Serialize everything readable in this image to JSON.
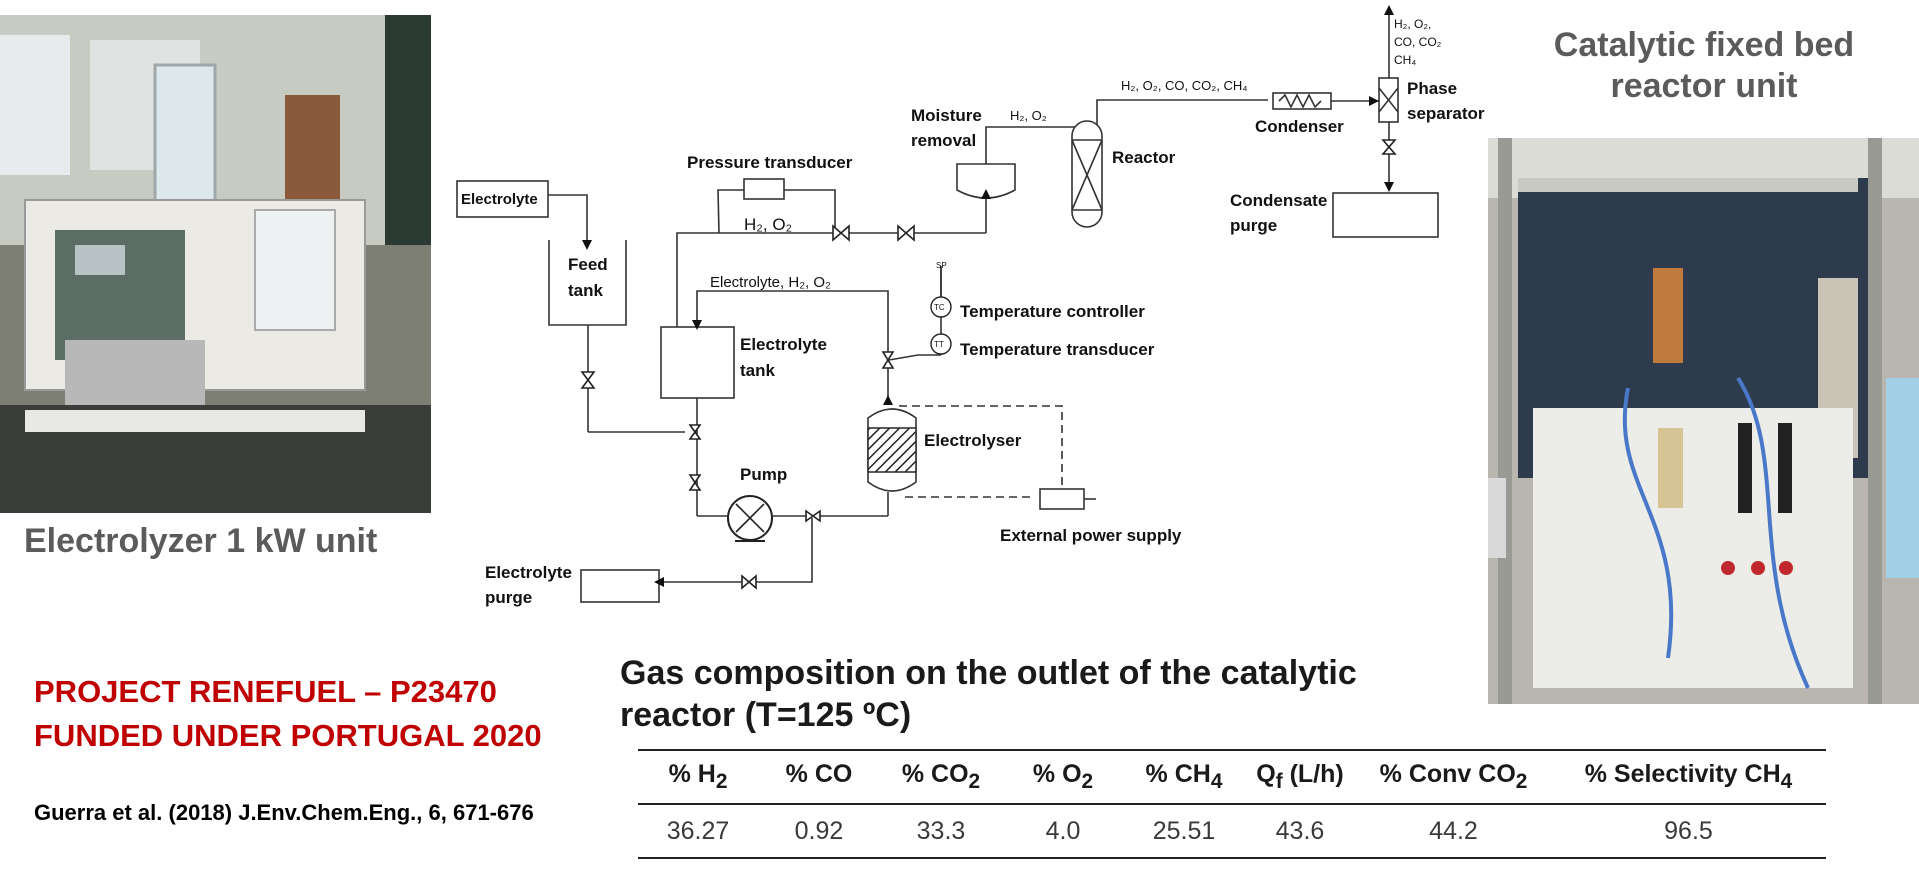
{
  "left_photo": {
    "caption": "Electrolyzer 1 kW unit"
  },
  "right_photo": {
    "caption_line1": "Catalytic fixed bed",
    "caption_line2": "reactor unit"
  },
  "project": {
    "line1": "PROJECT RENEFUEL – P23470",
    "line2": "FUNDED UNDER PORTUGAL 2020",
    "citation": "Guerra et al. (2018) J.Env.Chem.Eng., 6, 671-676"
  },
  "diagram": {
    "electrolyte_box": "Electrolyte",
    "feed_tank": [
      "Feed",
      "tank"
    ],
    "pressure_transducer": "Pressure transducer",
    "h2o2_line": "H₂, O₂",
    "moisture_removal": [
      "Moisture",
      "removal"
    ],
    "moisture_gas": "H₂, O₂",
    "reactor": "Reactor",
    "reactor_outlet_gas": "H₂, O₂, CO, CO₂, CH₄",
    "condenser": "Condenser",
    "phase_separator": [
      "Phase",
      "separator"
    ],
    "top_gas": [
      "H₂, O₂,",
      "CO, CO₂",
      "CH₄"
    ],
    "condensate_purge": [
      "Condensate",
      "purge"
    ],
    "electrolyte_return": "Electrolyte, H₂, O₂",
    "sp_label": "SP",
    "tc_symbol": "TC",
    "tt_symbol": "TT",
    "temperature_controller": "Temperature controller",
    "temperature_transducer": "Temperature transducer",
    "electrolyte_tank": [
      "Electrolyte",
      "tank"
    ],
    "electrolyser": "Electrolyser",
    "pump": "Pump",
    "external_power_supply": "External power supply",
    "electrolyte_purge": [
      "Electrolyte",
      "purge"
    ]
  },
  "gas_table": {
    "title_line1": "Gas composition on the outlet of the catalytic",
    "title_line2": "reactor  (T=125 ºC)",
    "headers": [
      {
        "pre": "% H",
        "sub": "2",
        "post": ""
      },
      {
        "pre": "% CO",
        "sub": "",
        "post": ""
      },
      {
        "pre": "% CO",
        "sub": "2",
        "post": ""
      },
      {
        "pre": "% O",
        "sub": "2",
        "post": ""
      },
      {
        "pre": "% CH",
        "sub": "4",
        "post": ""
      },
      {
        "pre": "Q",
        "sub": "f",
        "post": " (L/h)"
      },
      {
        "pre": "% Conv CO",
        "sub": "2",
        "post": ""
      },
      {
        "pre": "% Selectivity CH",
        "sub": "4",
        "post": ""
      }
    ],
    "values": [
      "36.27",
      "0.92",
      "33.3",
      "4.0",
      "25.51",
      "43.6",
      "44.2",
      "96.5"
    ]
  }
}
